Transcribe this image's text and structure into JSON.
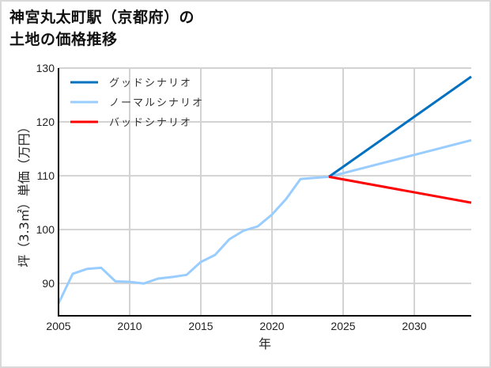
{
  "title_lines": [
    "神宮丸太町駅（京都府）の",
    "土地の価格推移"
  ],
  "chart_data": {
    "type": "line",
    "title": "神宮丸太町駅（京都府）の土地の価格推移",
    "xlabel": "年",
    "ylabel": "坪（3.3㎡）単価（万円）",
    "xlim": [
      2005,
      2034
    ],
    "ylim": [
      84,
      130
    ],
    "xticks": [
      2005,
      2010,
      2015,
      2020,
      2025,
      2030
    ],
    "yticks": [
      90,
      100,
      110,
      120,
      130
    ],
    "grid": true,
    "legend_position": "upper left",
    "series": [
      {
        "name": "グッドシナリオ",
        "color": "#0070c0",
        "x": [
          2024,
          2034
        ],
        "values": [
          109.8,
          128.4
        ]
      },
      {
        "name": "ノーマルシナリオ",
        "color": "#99ccff",
        "x": [
          2005,
          2006,
          2007,
          2008,
          2009,
          2010,
          2011,
          2012,
          2013,
          2014,
          2015,
          2016,
          2017,
          2018,
          2019,
          2020,
          2021,
          2022,
          2023,
          2024,
          2034
        ],
        "values": [
          86.3,
          91.8,
          92.7,
          92.9,
          90.4,
          90.3,
          90.0,
          90.9,
          91.2,
          91.6,
          94.0,
          95.3,
          98.2,
          99.8,
          100.6,
          102.8,
          105.7,
          109.4,
          109.6,
          109.8,
          116.6
        ]
      },
      {
        "name": "バッドシナリオ",
        "color": "#ff0000",
        "x": [
          2024,
          2034
        ],
        "values": [
          109.8,
          105.0
        ]
      }
    ]
  }
}
